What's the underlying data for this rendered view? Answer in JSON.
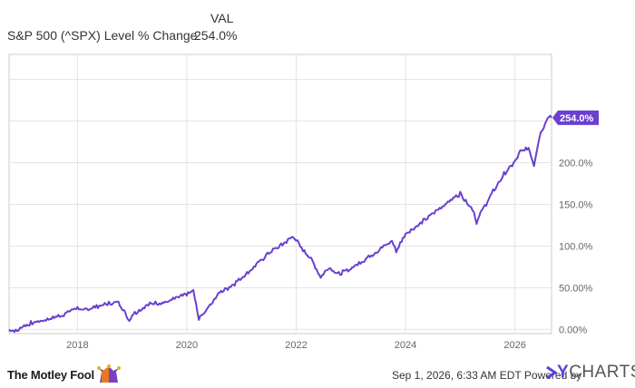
{
  "legend": {
    "column_header": "VAL",
    "series_name": "S&P 500 (^SPX) Level % Change",
    "series_value": "254.0%"
  },
  "footer": {
    "logo_text": "The Motley Fool",
    "timestamp": "Sep 1, 2026, 6:33 AM EDT",
    "powered_by": "Powered by",
    "brand_y": "Y",
    "brand_rest": "CHARTS"
  },
  "colors": {
    "line": "#6a3fd1",
    "grid": "#e3e3e3",
    "axis_text": "#666666",
    "plot_border": "#cccccc"
  },
  "chart_data": {
    "type": "line",
    "title": "",
    "xlabel": "",
    "ylabel": "",
    "xlim": [
      2016.75,
      2026.67
    ],
    "ylim": [
      -5,
      330
    ],
    "x_ticks": [
      2018,
      2020,
      2022,
      2024,
      2026
    ],
    "x_tick_labels": [
      "2018",
      "2020",
      "2022",
      "2024",
      "2026"
    ],
    "y_ticks": [
      0,
      50,
      100,
      150,
      200
    ],
    "y_tick_labels": [
      "0.00%",
      "50.00%",
      "100.0%",
      "150.0%",
      "200.0%"
    ],
    "grid": true,
    "end_label": "254.0%",
    "series": [
      {
        "name": "S&P 500 (^SPX) Level % Change",
        "x": [
          2016.75,
          2016.9,
          2017.0,
          2017.25,
          2017.5,
          2017.75,
          2018.0,
          2018.08,
          2018.15,
          2018.5,
          2018.75,
          2018.95,
          2019.0,
          2019.25,
          2019.4,
          2019.6,
          2019.75,
          2020.0,
          2020.12,
          2020.22,
          2020.4,
          2020.6,
          2020.8,
          2021.0,
          2021.25,
          2021.5,
          2021.75,
          2021.95,
          2022.1,
          2022.25,
          2022.45,
          2022.6,
          2022.78,
          2023.0,
          2023.25,
          2023.5,
          2023.75,
          2023.83,
          2024.0,
          2024.25,
          2024.5,
          2024.75,
          2025.0,
          2025.1,
          2025.25,
          2025.3,
          2025.4,
          2025.6,
          2025.8,
          2026.0,
          2026.1,
          2026.25,
          2026.35,
          2026.45,
          2026.55,
          2026.62,
          2026.67
        ],
        "y": [
          0,
          -2,
          4,
          9,
          13,
          18,
          27,
          21,
          24,
          30,
          33,
          11,
          18,
          28,
          32,
          32,
          36,
          42,
          46,
          12,
          28,
          44,
          52,
          62,
          76,
          92,
          102,
          112,
          97,
          87,
          63,
          75,
          66,
          73,
          84,
          95,
          106,
          94,
          115,
          126,
          139,
          152,
          163,
          155,
          142,
          128,
          143,
          165,
          186,
          201,
          213,
          218,
          198,
          232,
          248,
          256,
          254
        ]
      }
    ]
  }
}
